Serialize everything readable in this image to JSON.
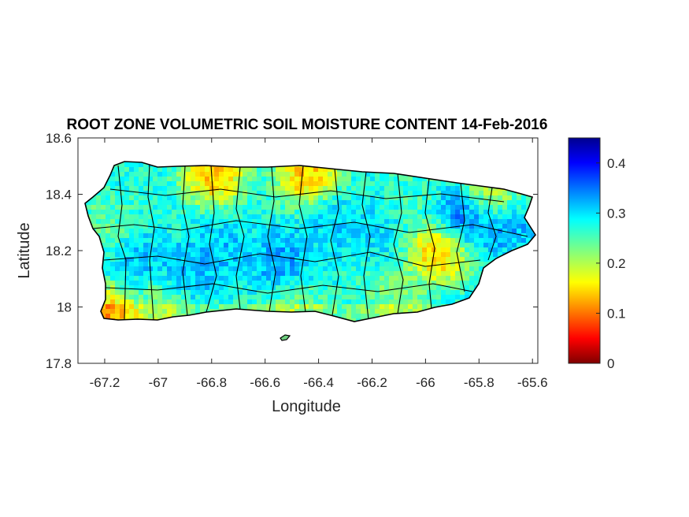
{
  "chart_data": {
    "type": "heatmap",
    "title": "ROOT ZONE VOLUMETRIC SOIL MOISTURE CONTENT 14-Feb-2016",
    "xlabel": "Longitude",
    "ylabel": "Latitude",
    "xlim": [
      -67.3,
      -65.58
    ],
    "ylim": [
      17.8,
      18.6
    ],
    "xticks": [
      -67.2,
      -67,
      -66.8,
      -66.6,
      -66.4,
      -66.2,
      -66,
      -65.8,
      -65.6
    ],
    "xtick_labels": [
      "-67.2",
      "-67",
      "-66.8",
      "-66.6",
      "-66.4",
      "-66.2",
      "-66",
      "-65.8",
      "-65.6"
    ],
    "yticks": [
      17.8,
      18,
      18.2,
      18.4,
      18.6
    ],
    "ytick_labels": [
      "17.8",
      "18",
      "18.2",
      "18.4",
      "18.6"
    ],
    "colorbar": {
      "colormap": "jet",
      "range": [
        0,
        0.45
      ],
      "ticks": [
        0,
        0.1,
        0.2,
        0.3,
        0.4
      ],
      "tick_labels": [
        "0",
        "0.1",
        "0.2",
        "0.3",
        "0.4"
      ]
    },
    "grid": false,
    "hotspots": [
      {
        "lon": -65.86,
        "lat": 18.33,
        "value": 0.38
      },
      {
        "lon": -65.72,
        "lat": 18.32,
        "value": 0.36
      },
      {
        "lon": -66.55,
        "lat": 18.17,
        "value": 0.34
      },
      {
        "lon": -66.9,
        "lat": 18.13,
        "value": 0.33
      },
      {
        "lon": -66.76,
        "lat": 18.21,
        "value": 0.32
      },
      {
        "lon": -67.08,
        "lat": 18.17,
        "value": 0.32
      },
      {
        "lon": -66.35,
        "lat": 18.3,
        "value": 0.31
      },
      {
        "lon": -66.2,
        "lat": 18.27,
        "value": 0.3
      },
      {
        "lon": -65.96,
        "lat": 18.2,
        "value": 0.1
      },
      {
        "lon": -65.76,
        "lat": 18.4,
        "value": 0.12
      },
      {
        "lon": -66.8,
        "lat": 18.48,
        "value": 0.1
      },
      {
        "lon": -66.45,
        "lat": 18.48,
        "value": 0.1
      },
      {
        "lon": -67.2,
        "lat": 17.98,
        "value": 0.1
      },
      {
        "lon": -66.12,
        "lat": 18.05,
        "value": 0.21
      },
      {
        "lon": -66.5,
        "lat": 18.0,
        "value": 0.22
      },
      {
        "lon": -67.0,
        "lat": 18.02,
        "value": 0.21
      },
      {
        "lon": -67.2,
        "lat": 18.3,
        "value": 0.23
      },
      {
        "lon": -66.05,
        "lat": 18.38,
        "value": 0.25
      }
    ],
    "base_value": 0.27
  }
}
